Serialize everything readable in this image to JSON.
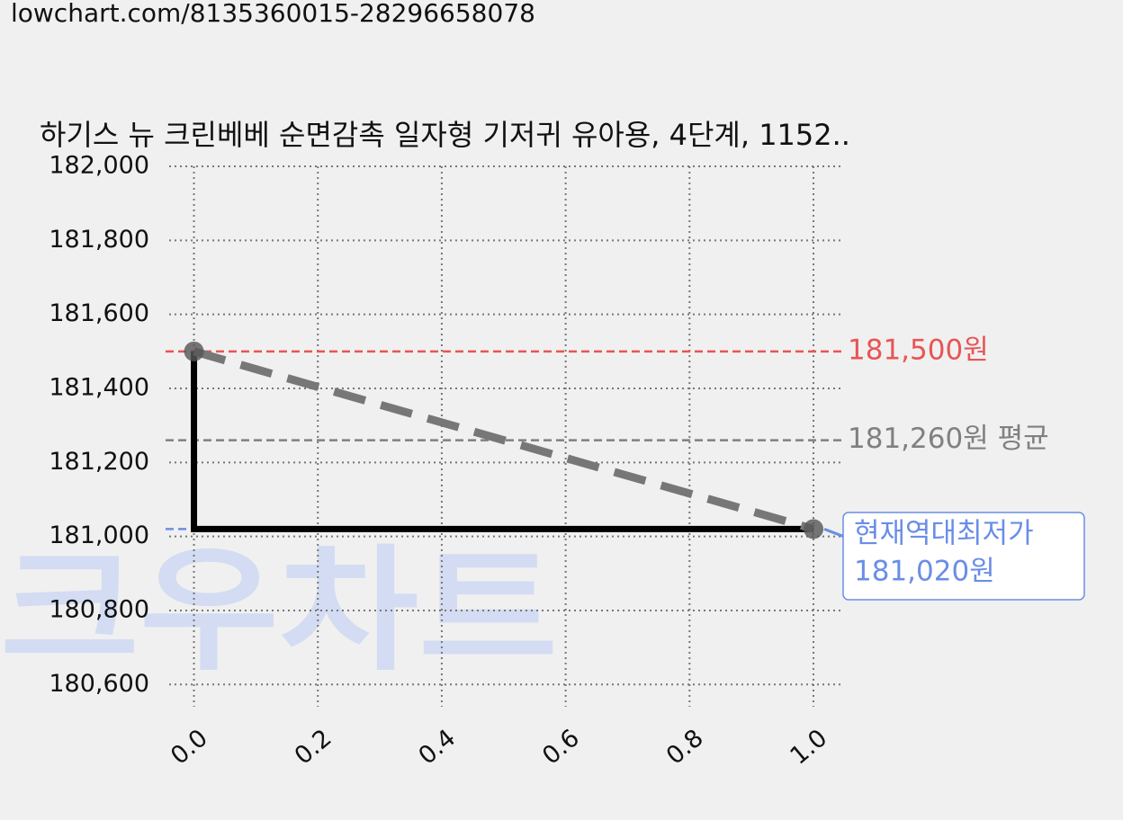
{
  "url": "lowchart.com/8135360015-28296658078",
  "chart_data": {
    "type": "line",
    "title": "하기스 뉴 크린베베 순면감촉 일자형 기저귀 유아용, 4단계, 1152..",
    "watermark": "크우차트",
    "x": [
      0,
      1
    ],
    "series": [
      {
        "color": "#777777",
        "step_color": "#000000",
        "values": [
          181500,
          181020
        ]
      }
    ],
    "xlim": [
      -0.04,
      1.045
    ],
    "ylim": [
      180540,
      182000
    ],
    "xticks": [
      {
        "value": 0,
        "label": "0.0"
      },
      0.2,
      0.4,
      0.6,
      0.8,
      {
        "value": 1,
        "label": "1.0"
      }
    ],
    "yticks": [
      {
        "value": 180600,
        "label": "180,600"
      },
      {
        "value": 180800,
        "label": "180,800"
      },
      {
        "value": 181000,
        "label": "181,000"
      },
      {
        "value": 181200,
        "label": "181,200"
      },
      {
        "value": 181400,
        "label": "181,400"
      },
      {
        "value": 181600,
        "label": "181,600"
      },
      {
        "value": 181800,
        "label": "181,800"
      },
      {
        "value": 182000,
        "label": "182,000"
      }
    ],
    "grid": true,
    "reference_lines": [
      {
        "value": 181500,
        "label": "181,500원",
        "color": "#e85555"
      },
      {
        "value": 181260,
        "label": "181,260원 평균",
        "color": "#808080"
      },
      {
        "value": 181020,
        "label_lines": [
          "현재역대최저가",
          "181,020원"
        ],
        "color": "#6a8ee6"
      }
    ]
  }
}
